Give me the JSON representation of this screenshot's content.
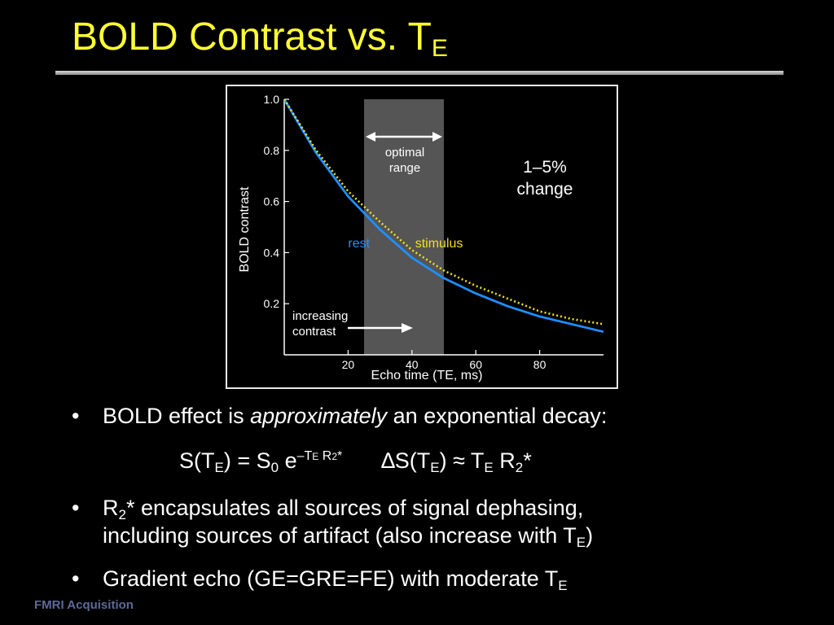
{
  "slide": {
    "title_main": "BOLD Contrast vs. T",
    "title_sub": "E",
    "footer": "FMRI Acquisition"
  },
  "bullets": [
    {
      "marker": "•",
      "pre": "BOLD effect is ",
      "emph": "approximately",
      "post": " an exponential decay:"
    },
    {
      "marker": "•",
      "line1_a": "R",
      "line1_sub": "2",
      "line1_b": "* encapsulates all sources of signal dephasing,",
      "line2_a": "including sources of artifact (also increase with T",
      "line2_sub": "E",
      "line2_b": ")"
    },
    {
      "marker": "•",
      "text": "Gradient echo (GE=GRE=FE) with moderate T",
      "sub": "E"
    }
  ],
  "equation": {
    "s": "S(T",
    "s_sub": "E",
    "eq": ") = S",
    "s0_sub": "0",
    "e": " e",
    "exp1": "–T",
    "exp1_sub": "E",
    "exp2": " R",
    "exp2_sub": "2",
    "exp3": "*",
    "delta": "∆S(T",
    "delta_sub": "E",
    "approx": ") ≈ T",
    "te_sub": "E",
    "r": " R",
    "r_sub": "2",
    "star": "*"
  },
  "chart_data": {
    "type": "line",
    "xlabel": "Echo time (TE, ms)",
    "ylabel": "BOLD contrast",
    "xlim": [
      0,
      100
    ],
    "ylim": [
      0,
      1.0
    ],
    "x_ticks": [
      20,
      40,
      60,
      80
    ],
    "y_ticks": [
      0.2,
      0.4,
      0.6,
      0.8,
      1.0
    ],
    "y_tick_labels": [
      "0.2",
      "0.4",
      "0.6",
      "0.8",
      "1.0"
    ],
    "series": [
      {
        "name": "rest",
        "color": "#1e8fff",
        "x": [
          0,
          10,
          20,
          30,
          40,
          50,
          60,
          70,
          80,
          90,
          100
        ],
        "values": [
          1.0,
          0.79,
          0.62,
          0.49,
          0.38,
          0.3,
          0.24,
          0.19,
          0.15,
          0.12,
          0.09
        ]
      },
      {
        "name": "stimulus",
        "color": "#f0e020",
        "x": [
          0,
          10,
          20,
          30,
          40,
          50,
          60,
          70,
          80,
          90,
          100
        ],
        "values": [
          1.0,
          0.8,
          0.64,
          0.52,
          0.41,
          0.33,
          0.27,
          0.22,
          0.17,
          0.14,
          0.12
        ]
      }
    ],
    "shaded_region": {
      "x": [
        25,
        50
      ],
      "label_line1": "optimal",
      "label_line2": "range",
      "color": "#555555"
    },
    "annotations": {
      "change_line1": "1–5%",
      "change_line2": "change",
      "increasing_line1": "increasing",
      "increasing_line2": "contrast"
    }
  }
}
